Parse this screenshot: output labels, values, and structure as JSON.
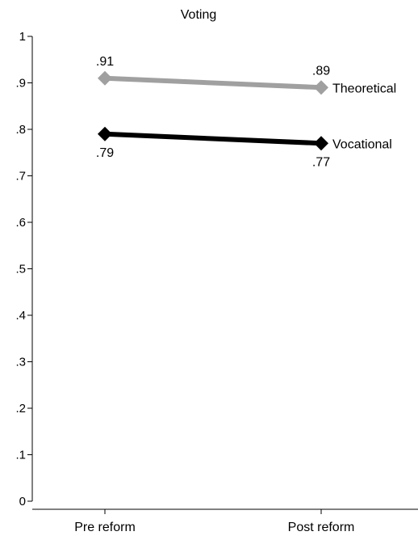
{
  "chart_data": {
    "type": "line",
    "title": "Voting",
    "categories": [
      "Pre reform",
      "Post reform"
    ],
    "ylim": [
      0,
      1
    ],
    "yticks": [
      0,
      0.1,
      0.2,
      0.3,
      0.4,
      0.5,
      0.6,
      0.7,
      0.8,
      0.9,
      1
    ],
    "ytick_labels": [
      "0",
      ".1",
      ".2",
      ".3",
      ".4",
      ".5",
      ".6",
      ".7",
      ".8",
      ".9",
      "1"
    ],
    "grid": false,
    "series": [
      {
        "name": "Theoretical",
        "values": [
          0.91,
          0.89
        ],
        "value_labels": [
          ".91",
          ".89"
        ],
        "color": "#a0a0a0",
        "marker": "diamond"
      },
      {
        "name": "Vocational",
        "values": [
          0.79,
          0.77
        ],
        "value_labels": [
          ".79",
          ".77"
        ],
        "color": "#000000",
        "marker": "diamond"
      }
    ]
  }
}
